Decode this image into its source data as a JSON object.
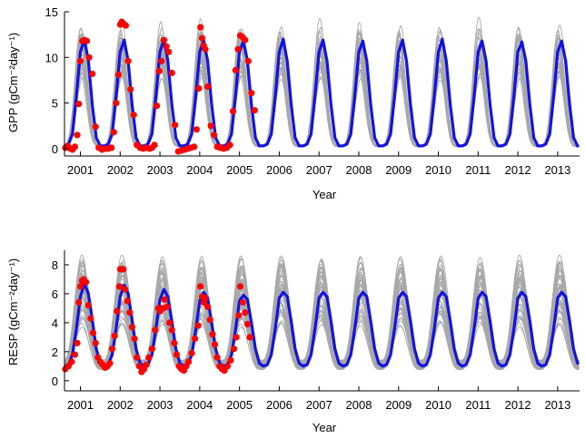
{
  "colors": {
    "ensemble": "#a8a8a8",
    "mean": "#1212e6",
    "observed": "#ff0000",
    "axis": "#000000"
  },
  "chart_data": [
    {
      "type": "line",
      "title": "",
      "xlabel": "Year",
      "ylabel": "GPP (gCm⁻²day⁻¹)",
      "xlim": [
        2000.6,
        2013.55
      ],
      "ylim": [
        -0.8,
        15
      ],
      "xticks": [
        2001,
        2002,
        2003,
        2004,
        2005,
        2006,
        2007,
        2008,
        2009,
        2010,
        2011,
        2012,
        2013
      ],
      "xtick_labels": [
        "2001",
        "2002",
        "2003",
        "2004",
        "2005",
        "2006",
        "2007",
        "2008",
        "2009",
        "2010",
        "2011",
        "2012",
        "2013"
      ],
      "yticks": [
        0,
        5,
        10,
        15
      ],
      "ytick_labels": [
        "0",
        "5",
        "10",
        "15"
      ],
      "series": [
        {
          "role": "ensemble",
          "style": "thin grey lines",
          "seasonal_model": {
            "base": 0.3,
            "amplitude_mean": 11.6,
            "amplitude_spread": [
              8.2,
              14.3
            ],
            "peak_phase": 0.03,
            "sharpness": 2.5,
            "members": 30
          }
        },
        {
          "role": "mean",
          "style": "thick blue line",
          "x": [
            2000.6,
            2000.7,
            2000.8,
            2000.9,
            2001.0,
            2001.1,
            2001.2,
            2001.3,
            2001.4,
            2001.5,
            2001.6,
            2001.7,
            2001.8,
            2001.9,
            2002.0,
            2002.1,
            2002.2,
            2002.3,
            2002.4,
            2002.5,
            2002.6,
            2002.7,
            2002.8,
            2002.9,
            2003.0,
            2003.1,
            2003.2,
            2003.3,
            2003.4,
            2003.5,
            2003.6,
            2003.7,
            2003.8,
            2003.9,
            2004.0,
            2004.1,
            2004.2,
            2004.3,
            2004.4,
            2004.5,
            2004.6,
            2004.7,
            2004.8,
            2004.9,
            2005.0,
            2005.1,
            2005.2,
            2005.3,
            2005.4,
            2005.5,
            2005.6,
            2005.7,
            2005.8,
            2005.9,
            2006.0,
            2006.1,
            2006.2,
            2006.3,
            2006.4,
            2006.5,
            2006.6,
            2006.7,
            2006.8,
            2006.9,
            2007.0,
            2007.1,
            2007.2,
            2007.3,
            2007.4,
            2007.5,
            2007.6,
            2007.7,
            2007.8,
            2007.9,
            2008.0,
            2008.1,
            2008.2,
            2008.3,
            2008.4,
            2008.5,
            2008.6,
            2008.7,
            2008.8,
            2008.9,
            2009.0,
            2009.1,
            2009.2,
            2009.3,
            2009.4,
            2009.5,
            2009.6,
            2009.7,
            2009.8,
            2009.9,
            2010.0,
            2010.1,
            2010.2,
            2010.3,
            2010.4,
            2010.5,
            2010.6,
            2010.7,
            2010.8,
            2010.9,
            2011.0,
            2011.1,
            2011.2,
            2011.3,
            2011.4,
            2011.5,
            2011.6,
            2011.7,
            2011.8,
            2011.9,
            2012.0,
            2012.1,
            2012.2,
            2012.3,
            2012.4,
            2012.5,
            2012.6,
            2012.7,
            2012.8,
            2012.9,
            2013.0,
            2013.1,
            2013.2,
            2013.3,
            2013.4,
            2013.5
          ],
          "y": [
            0.3,
            0.5,
            1.6,
            5.8,
            10.6,
            12.0,
            9.6,
            4.8,
            1.2,
            0.3,
            0.3,
            0.5,
            1.6,
            5.8,
            10.6,
            11.9,
            9.6,
            4.8,
            1.2,
            0.3,
            0.3,
            0.5,
            1.6,
            5.8,
            10.6,
            12.0,
            9.6,
            4.8,
            1.2,
            0.3,
            0.3,
            0.5,
            1.6,
            5.8,
            10.6,
            11.9,
            9.6,
            4.8,
            1.2,
            0.3,
            0.3,
            0.5,
            1.6,
            5.8,
            10.6,
            11.8,
            9.6,
            4.8,
            1.2,
            0.3,
            0.3,
            0.5,
            1.6,
            5.8,
            10.6,
            12.0,
            9.6,
            4.8,
            1.2,
            0.3,
            0.3,
            0.5,
            1.6,
            5.8,
            10.6,
            11.9,
            9.6,
            4.8,
            1.2,
            0.3,
            0.3,
            0.5,
            1.6,
            5.8,
            10.6,
            11.8,
            9.6,
            4.8,
            1.2,
            0.3,
            0.3,
            0.5,
            1.6,
            5.8,
            10.6,
            11.9,
            9.6,
            4.8,
            1.2,
            0.3,
            0.3,
            0.5,
            1.6,
            5.8,
            10.6,
            12.0,
            9.6,
            4.8,
            1.2,
            0.3,
            0.3,
            0.5,
            1.6,
            5.8,
            10.6,
            11.8,
            9.6,
            4.8,
            1.2,
            0.3,
            0.3,
            0.5,
            1.6,
            5.8,
            10.6,
            11.7,
            9.6,
            4.8,
            1.2,
            0.3,
            0.3,
            0.5,
            1.6,
            5.8,
            10.6,
            11.8,
            9.6,
            4.8,
            1.2,
            0.3
          ]
        },
        {
          "role": "observed",
          "style": "red dots",
          "x": [
            2000.62,
            2000.68,
            2000.75,
            2000.8,
            2000.86,
            2000.92,
            2000.96,
            2001.0,
            2001.05,
            2001.1,
            2001.16,
            2001.22,
            2001.3,
            2001.38,
            2001.46,
            2001.54,
            2001.62,
            2001.7,
            2001.78,
            2001.84,
            2001.9,
            2001.96,
            2002.0,
            2002.04,
            2002.08,
            2002.14,
            2002.2,
            2002.26,
            2002.34,
            2002.42,
            2002.5,
            2002.58,
            2002.66,
            2002.74,
            2002.8,
            2002.86,
            2002.92,
            2002.98,
            2003.04,
            2003.1,
            2003.16,
            2003.22,
            2003.3,
            2003.38,
            2003.46,
            2003.54,
            2003.62,
            2003.7,
            2003.78,
            2003.86,
            2003.92,
            2003.98,
            2004.02,
            2004.06,
            2004.1,
            2004.14,
            2004.2,
            2004.28,
            2004.36,
            2004.44,
            2004.52,
            2004.6,
            2004.68,
            2004.76,
            2004.84,
            2004.9,
            2004.96,
            2005.02,
            2005.08,
            2005.14,
            2005.22,
            2005.3,
            2005.38
          ],
          "y": [
            0.1,
            0.3,
            0.0,
            -0.1,
            0.2,
            1.5,
            4.9,
            9.6,
            11.8,
            11.9,
            11.8,
            10.0,
            8.2,
            2.4,
            0.1,
            -0.1,
            0.0,
            0.0,
            0.1,
            1.8,
            5.0,
            8.1,
            13.6,
            13.9,
            13.7,
            13.5,
            9.6,
            6.5,
            3.7,
            0.4,
            0.1,
            0.0,
            0.1,
            0.0,
            0.1,
            0.4,
            4.7,
            8.5,
            9.6,
            11.9,
            11.2,
            10.6,
            8.3,
            2.6,
            -0.3,
            -0.2,
            -0.1,
            0.0,
            0.1,
            0.2,
            2.1,
            6.6,
            13.3,
            12.1,
            11.3,
            10.9,
            6.8,
            2.5,
            1.5,
            0.2,
            0.1,
            0.0,
            0.1,
            0.4,
            4.1,
            8.6,
            10.9,
            12.4,
            12.2,
            11.9,
            9.6,
            6.1,
            4.2
          ]
        }
      ]
    },
    {
      "type": "line",
      "title": "",
      "xlabel": "Year",
      "ylabel": "RESP (gCm⁻²day⁻¹)",
      "xlim": [
        2000.6,
        2013.55
      ],
      "ylim": [
        -0.7,
        9
      ],
      "xticks": [
        2001,
        2002,
        2003,
        2004,
        2005,
        2006,
        2007,
        2008,
        2009,
        2010,
        2011,
        2012,
        2013
      ],
      "xtick_labels": [
        "2001",
        "2002",
        "2003",
        "2004",
        "2005",
        "2006",
        "2007",
        "2008",
        "2009",
        "2010",
        "2011",
        "2012",
        "2013"
      ],
      "yticks": [
        0,
        2,
        4,
        6,
        8
      ],
      "ytick_labels": [
        "0",
        "2",
        "4",
        "6",
        "8"
      ],
      "series": [
        {
          "role": "ensemble",
          "style": "thin grey lines",
          "seasonal_model": {
            "base": 1.1,
            "amplitude_mean": 5.0,
            "amplitude_spread": [
              3.2,
              7.6
            ],
            "peak_phase": 0.05,
            "sharpness": 1.6,
            "members": 45
          }
        },
        {
          "role": "mean",
          "style": "thick blue line",
          "x": [
            2000.6,
            2000.7,
            2000.8,
            2000.9,
            2001.0,
            2001.1,
            2001.2,
            2001.3,
            2001.4,
            2001.5,
            2001.6,
            2001.7,
            2001.8,
            2001.9,
            2002.0,
            2002.1,
            2002.2,
            2002.3,
            2002.4,
            2002.5,
            2002.6,
            2002.7,
            2002.8,
            2002.9,
            2003.0,
            2003.1,
            2003.2,
            2003.3,
            2003.4,
            2003.5,
            2003.6,
            2003.7,
            2003.8,
            2003.9,
            2004.0,
            2004.1,
            2004.2,
            2004.3,
            2004.4,
            2004.5,
            2004.6,
            2004.7,
            2004.8,
            2004.9,
            2005.0,
            2005.1,
            2005.2,
            2005.3,
            2005.4,
            2005.5,
            2005.6,
            2005.7,
            2005.8,
            2005.9,
            2006.0,
            2006.1,
            2006.2,
            2006.3,
            2006.4,
            2006.5,
            2006.6,
            2006.7,
            2006.8,
            2006.9,
            2007.0,
            2007.1,
            2007.2,
            2007.3,
            2007.4,
            2007.5,
            2007.6,
            2007.7,
            2007.8,
            2007.9,
            2008.0,
            2008.1,
            2008.2,
            2008.3,
            2008.4,
            2008.5,
            2008.6,
            2008.7,
            2008.8,
            2008.9,
            2009.0,
            2009.1,
            2009.2,
            2009.3,
            2009.4,
            2009.5,
            2009.6,
            2009.7,
            2009.8,
            2009.9,
            2010.0,
            2010.1,
            2010.2,
            2010.3,
            2010.4,
            2010.5,
            2010.6,
            2010.7,
            2010.8,
            2010.9,
            2011.0,
            2011.1,
            2011.2,
            2011.3,
            2011.4,
            2011.5,
            2011.6,
            2011.7,
            2011.8,
            2011.9,
            2012.0,
            2012.1,
            2012.2,
            2012.3,
            2012.4,
            2012.5,
            2012.6,
            2012.7,
            2012.8,
            2012.9,
            2013.0,
            2013.1,
            2013.2,
            2013.3,
            2013.4,
            2013.5
          ],
          "y": [
            1.0,
            1.1,
            1.8,
            3.6,
            5.8,
            6.7,
            6.0,
            4.2,
            2.2,
            1.2,
            1.0,
            1.1,
            1.8,
            3.6,
            5.8,
            6.6,
            6.0,
            4.2,
            2.2,
            1.2,
            1.0,
            1.1,
            1.8,
            3.6,
            5.6,
            6.3,
            5.8,
            4.1,
            2.2,
            1.2,
            1.0,
            1.1,
            1.8,
            3.5,
            5.5,
            6.1,
            5.7,
            4.0,
            2.2,
            1.2,
            1.0,
            1.1,
            1.8,
            3.5,
            5.5,
            5.9,
            5.6,
            4.0,
            2.2,
            1.2,
            1.0,
            1.1,
            1.8,
            3.6,
            5.7,
            6.1,
            5.8,
            4.1,
            2.2,
            1.2,
            1.0,
            1.1,
            1.8,
            3.6,
            5.7,
            6.1,
            5.8,
            4.1,
            2.2,
            1.2,
            1.0,
            1.1,
            1.8,
            3.6,
            5.7,
            6.1,
            5.8,
            4.1,
            2.2,
            1.2,
            1.0,
            1.1,
            1.8,
            3.6,
            5.7,
            6.1,
            5.8,
            4.1,
            2.2,
            1.2,
            1.0,
            1.1,
            1.8,
            3.6,
            5.7,
            6.1,
            5.8,
            4.1,
            2.2,
            1.2,
            1.0,
            1.1,
            1.8,
            3.6,
            5.7,
            6.1,
            5.8,
            4.1,
            2.2,
            1.2,
            1.0,
            1.1,
            1.8,
            3.6,
            5.7,
            6.1,
            5.8,
            4.1,
            2.2,
            1.2,
            1.0,
            1.1,
            1.8,
            3.6,
            5.7,
            6.1,
            5.8,
            4.1,
            2.2,
            1.2
          ]
        },
        {
          "role": "observed",
          "style": "red dots",
          "x": [
            2000.62,
            2000.7,
            2000.78,
            2000.86,
            2000.92,
            2000.96,
            2001.0,
            2001.04,
            2001.08,
            2001.14,
            2001.2,
            2001.26,
            2001.32,
            2001.38,
            2001.44,
            2001.5,
            2001.56,
            2001.62,
            2001.68,
            2001.74,
            2001.8,
            2001.86,
            2001.92,
            2001.98,
            2002.0,
            2002.04,
            2002.08,
            2002.12,
            2002.18,
            2002.24,
            2002.3,
            2002.36,
            2002.42,
            2002.48,
            2002.54,
            2002.6,
            2002.66,
            2002.72,
            2002.8,
            2002.88,
            2002.96,
            2003.0,
            2003.04,
            2003.08,
            2003.12,
            2003.18,
            2003.24,
            2003.3,
            2003.36,
            2003.42,
            2003.48,
            2003.54,
            2003.6,
            2003.66,
            2003.72,
            2003.8,
            2003.88,
            2003.96,
            2004.02,
            2004.06,
            2004.1,
            2004.14,
            2004.2,
            2004.26,
            2004.32,
            2004.38,
            2004.44,
            2004.5,
            2004.56,
            2004.62,
            2004.7,
            2004.78,
            2004.86,
            2004.92,
            2004.98,
            2005.02,
            2005.08,
            2005.14,
            2005.2,
            2005.26
          ],
          "y": [
            0.8,
            1.0,
            1.3,
            1.8,
            2.6,
            5.4,
            6.5,
            6.9,
            7.0,
            6.8,
            5.2,
            4.3,
            3.3,
            2.6,
            1.6,
            1.3,
            1.1,
            0.9,
            1.0,
            1.2,
            2.2,
            3.1,
            4.8,
            6.5,
            7.7,
            7.7,
            7.7,
            6.3,
            5.5,
            4.7,
            3.7,
            2.9,
            1.6,
            1.0,
            0.6,
            0.8,
            1.1,
            1.6,
            2.2,
            3.5,
            5.0,
            4.8,
            5.0,
            5.0,
            5.6,
            5.1,
            4.0,
            3.5,
            2.6,
            1.8,
            1.0,
            0.8,
            0.7,
            1.0,
            1.3,
            1.9,
            2.9,
            3.8,
            6.5,
            5.8,
            5.4,
            5.7,
            5.1,
            4.2,
            3.2,
            2.5,
            1.6,
            1.0,
            0.8,
            0.7,
            1.0,
            1.4,
            2.2,
            3.0,
            4.5,
            6.5,
            5.4,
            4.7,
            3.9,
            3.0
          ]
        }
      ]
    }
  ]
}
